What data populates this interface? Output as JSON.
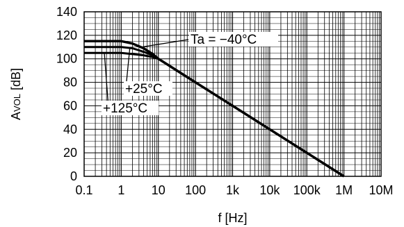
{
  "chart_data": {
    "type": "line",
    "xscale": "log",
    "xlim": [
      0.1,
      10000000
    ],
    "ylim": [
      0,
      140
    ],
    "xlabel": "f [Hz]",
    "ylabel": {
      "main": "A",
      "sub": "VOL",
      "unit": " [dB]"
    },
    "x_ticks": [
      {
        "value": 0.1,
        "label": "0.1"
      },
      {
        "value": 1,
        "label": "1"
      },
      {
        "value": 10,
        "label": "10"
      },
      {
        "value": 100,
        "label": "100"
      },
      {
        "value": 1000,
        "label": "1k"
      },
      {
        "value": 10000,
        "label": "10k"
      },
      {
        "value": 100000,
        "label": "100k"
      },
      {
        "value": 1000000,
        "label": "1M"
      },
      {
        "value": 10000000,
        "label": "10M"
      }
    ],
    "y_ticks": [
      0,
      20,
      40,
      60,
      80,
      100,
      120,
      140
    ],
    "grid": true,
    "series": [
      {
        "name": "Ta = −40°C",
        "color": "#000000",
        "x": [
          0.1,
          0.3,
          1,
          2,
          4,
          7,
          10,
          100,
          1000,
          10000,
          100000,
          1000000
        ],
        "y": [
          115,
          115,
          115,
          113,
          109,
          104,
          100,
          80,
          60,
          40,
          20,
          0
        ]
      },
      {
        "name": "+25°C",
        "color": "#000000",
        "x": [
          0.1,
          0.3,
          1,
          2,
          4,
          7,
          10,
          100,
          1000,
          10000,
          100000,
          1000000
        ],
        "y": [
          110,
          110,
          110,
          109,
          106,
          103,
          100,
          80,
          60,
          40,
          20,
          0
        ]
      },
      {
        "name": "+125°C",
        "color": "#000000",
        "x": [
          0.1,
          0.3,
          1,
          2,
          4,
          7,
          10,
          100,
          1000,
          10000,
          100000,
          1000000
        ],
        "y": [
          105,
          105,
          105,
          104,
          103,
          101.5,
          100,
          80,
          60,
          40,
          20,
          0
        ]
      }
    ],
    "annotations": [
      {
        "text": "Ta = −40°C",
        "series": 0
      },
      {
        "text": "+25°C",
        "series": 1
      },
      {
        "text": "+125°C",
        "series": 2
      }
    ]
  }
}
